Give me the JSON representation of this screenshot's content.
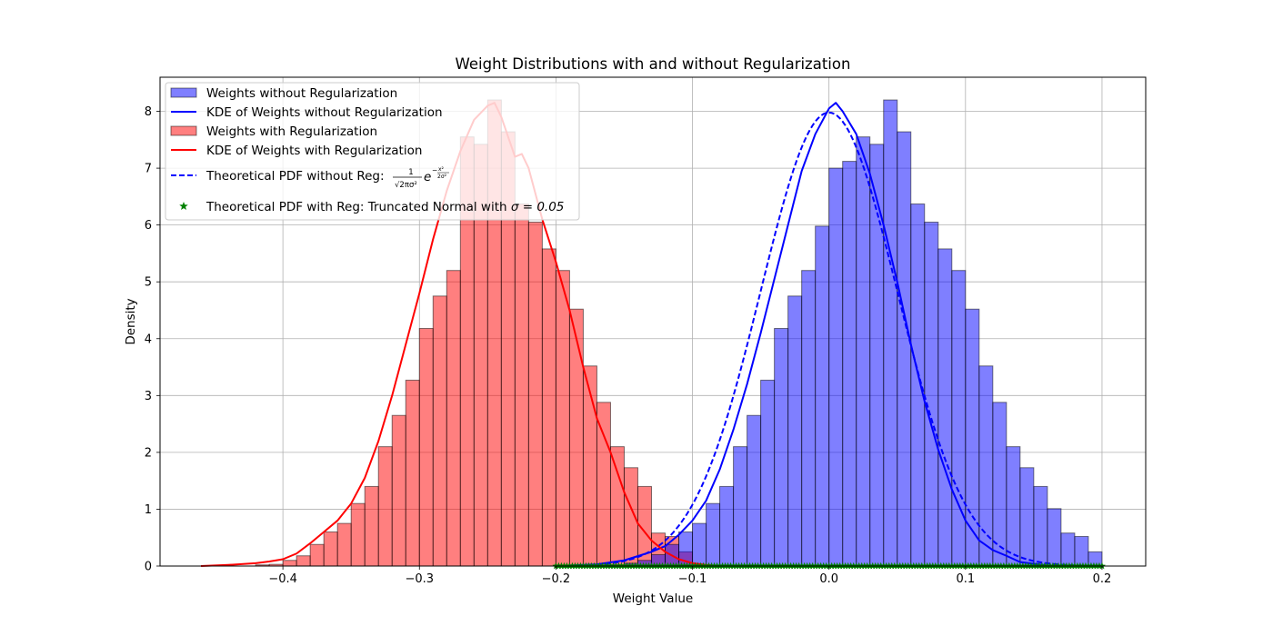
{
  "chart_data": {
    "type": "bar",
    "title": "Weight Distributions with and without Regularization",
    "xlabel": "Weight Value",
    "ylabel": "Density",
    "xlim": [
      -0.49,
      0.232
    ],
    "ylim": [
      0,
      8.6
    ],
    "grid": true,
    "legend_position": "top-left",
    "x_ticks": [
      -0.4,
      -0.3,
      -0.2,
      -0.1,
      0.0,
      0.1,
      0.2
    ],
    "x_tick_labels": [
      "−0.4",
      "−0.3",
      "−0.2",
      "−0.1",
      "0.0",
      "0.1",
      "0.2"
    ],
    "y_ticks": [
      0,
      1,
      2,
      3,
      4,
      5,
      6,
      7,
      8
    ],
    "y_tick_labels": [
      "0",
      "1",
      "2",
      "3",
      "4",
      "5",
      "6",
      "7",
      "8"
    ],
    "bin_width": 0.01,
    "series": [
      {
        "name": "Weights without Regularization",
        "kind": "histogram",
        "color": "#0000ff",
        "bin_starts": [
          -0.19,
          -0.18,
          -0.17,
          -0.16,
          -0.15,
          -0.14,
          -0.13,
          -0.12,
          -0.11,
          -0.1,
          -0.09,
          -0.08,
          -0.07,
          -0.06,
          -0.05,
          -0.04,
          -0.03,
          -0.02,
          -0.01,
          0.0,
          0.01,
          0.02,
          0.03,
          0.04,
          0.05,
          0.06,
          0.07,
          0.08,
          0.09,
          0.1,
          0.11,
          0.12,
          0.13,
          0.14,
          0.15,
          0.16,
          0.17,
          0.18,
          0.19
        ],
        "values": [
          0,
          0,
          0,
          0.02,
          0.05,
          0.1,
          0.2,
          0.38,
          0.6,
          0.75,
          1.1,
          1.4,
          2.1,
          2.65,
          3.27,
          4.18,
          4.75,
          5.2,
          5.98,
          7.0,
          7.12,
          7.55,
          7.42,
          8.2,
          7.64,
          6.37,
          6.05,
          5.58,
          5.2,
          4.52,
          3.52,
          2.88,
          2.1,
          1.73,
          1.4,
          1.01,
          0.58,
          0.52,
          0.25
        ]
      },
      {
        "name": "KDE of Weights without Regularization",
        "kind": "line",
        "color": "#0000ff",
        "x": [
          -0.2,
          -0.17,
          -0.15,
          -0.13,
          -0.12,
          -0.11,
          -0.1,
          -0.09,
          -0.08,
          -0.07,
          -0.06,
          -0.05,
          -0.04,
          -0.03,
          -0.02,
          -0.01,
          0.0,
          0.005,
          0.01,
          0.02,
          0.03,
          0.04,
          0.05,
          0.06,
          0.07,
          0.08,
          0.09,
          0.1,
          0.11,
          0.12,
          0.13,
          0.14,
          0.16,
          0.2
        ],
        "y": [
          0.0,
          0.03,
          0.1,
          0.25,
          0.35,
          0.55,
          0.8,
          1.15,
          1.7,
          2.4,
          3.2,
          4.1,
          5.05,
          6.0,
          6.95,
          7.6,
          8.05,
          8.15,
          8.0,
          7.6,
          6.9,
          6.0,
          5.0,
          3.9,
          2.9,
          2.05,
          1.35,
          0.8,
          0.45,
          0.28,
          0.18,
          0.07,
          0.01,
          0.0
        ]
      },
      {
        "name": "Weights with Regularization",
        "kind": "histogram",
        "color": "#ff0000",
        "bin_starts": [
          -0.42,
          -0.41,
          -0.4,
          -0.39,
          -0.38,
          -0.37,
          -0.36,
          -0.35,
          -0.34,
          -0.33,
          -0.32,
          -0.31,
          -0.3,
          -0.29,
          -0.28,
          -0.27,
          -0.26,
          -0.25,
          -0.24,
          -0.23,
          -0.22,
          -0.21,
          -0.2,
          -0.19,
          -0.18,
          -0.17,
          -0.16,
          -0.15,
          -0.14,
          -0.13,
          -0.12,
          -0.11,
          -0.1
        ],
        "values": [
          0.02,
          0.03,
          0.1,
          0.18,
          0.38,
          0.6,
          0.75,
          1.1,
          1.4,
          2.1,
          2.65,
          3.27,
          4.18,
          4.75,
          5.2,
          7.55,
          7.42,
          8.2,
          7.64,
          6.37,
          6.05,
          5.58,
          5.2,
          4.52,
          3.52,
          2.88,
          2.1,
          1.73,
          1.4,
          0.58,
          0.52,
          0.25,
          0.03
        ]
      },
      {
        "name": "KDE of Weights with Regularization",
        "kind": "line",
        "color": "#ff0000",
        "x": [
          -0.46,
          -0.44,
          -0.42,
          -0.41,
          -0.4,
          -0.39,
          -0.38,
          -0.37,
          -0.36,
          -0.35,
          -0.34,
          -0.33,
          -0.32,
          -0.31,
          -0.3,
          -0.29,
          -0.28,
          -0.27,
          -0.26,
          -0.25,
          -0.245,
          -0.24,
          -0.23,
          -0.225,
          -0.22,
          -0.21,
          -0.2,
          -0.19,
          -0.18,
          -0.17,
          -0.16,
          -0.15,
          -0.14,
          -0.13,
          -0.12,
          -0.11,
          -0.1,
          -0.09,
          -0.08
        ],
        "y": [
          0.0,
          0.02,
          0.05,
          0.08,
          0.12,
          0.22,
          0.4,
          0.6,
          0.8,
          1.1,
          1.55,
          2.2,
          3.0,
          3.9,
          4.8,
          5.75,
          6.6,
          7.3,
          7.85,
          8.1,
          8.15,
          7.9,
          7.2,
          7.25,
          7.0,
          6.1,
          5.35,
          4.5,
          3.5,
          2.6,
          2.0,
          1.3,
          0.75,
          0.45,
          0.25,
          0.12,
          0.05,
          0.02,
          0.0
        ]
      },
      {
        "name": "Theoretical PDF without Reg: ",
        "formula": "\\frac{1}{\\sqrt{2\\pi\\sigma^2}}e^{-\\frac{x^2}{2\\sigma^2}}",
        "kind": "line",
        "style": "dashed",
        "color": "#0000ff",
        "mu": 0.0,
        "sigma": 0.05,
        "x_range": [
          -0.2,
          0.2
        ]
      },
      {
        "name": "Theoretical PDF with Reg: Truncated Normal with ",
        "name_math": "σ = 0.05",
        "kind": "scatter",
        "marker": "star",
        "color": "#008000",
        "x_range": [
          -0.2,
          0.2
        ],
        "y": 0.0
      }
    ]
  }
}
